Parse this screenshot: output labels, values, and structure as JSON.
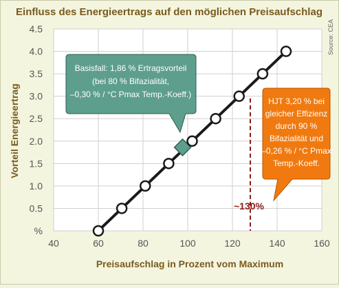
{
  "title": "Einfluss des Energieertrags auf den möglichen Preisaufschlag",
  "source": "Source: CEA",
  "colors": {
    "background": "#f3f5df",
    "plot_area": "#ffffff",
    "line": "#1a1a1a",
    "teal_callout": "#5e9e8c",
    "orange_callout": "#f07a10",
    "dashed_line": "#8b1a1a",
    "title": "#7a5a1e"
  },
  "chart_data": {
    "type": "line",
    "title": "Einfluss des Energieertrags auf den möglichen Preisaufschlag",
    "xlabel": "Preisaufschlag in Prozent vom Maximum",
    "ylabel": "Vorteil Energieertrag",
    "xlim": [
      40,
      160
    ],
    "ylim": [
      0,
      4.5
    ],
    "x_ticks": [
      "40",
      "60",
      "80",
      "100",
      "120",
      "140",
      "160"
    ],
    "y_ticks": [
      "%",
      "0.5",
      "1.0",
      "1.5",
      "2.0",
      "2.5",
      "3.0",
      "3.5",
      "4.0",
      "4.5"
    ],
    "grid": true,
    "series": [
      {
        "x": [
          60,
          70.5,
          81,
          91.5,
          102,
          112.5,
          123,
          133.5,
          144
        ],
        "y": [
          0,
          0.5,
          1.0,
          1.5,
          2.0,
          2.5,
          3.0,
          3.5,
          4.0
        ]
      }
    ],
    "highlight_point": {
      "x": 97.7,
      "y": 1.86
    },
    "reference_line": {
      "x": 128,
      "label": "~130%"
    },
    "callouts": [
      {
        "lines": [
          "Basisfall: 1,86 % Ertragsvorteil",
          "(bei 80 % Bifazialität,",
          "–0,30 % / °C Pmax Temp.-Koeff.)"
        ]
      },
      {
        "lines": [
          "HJT 3,20 % bei",
          "gleicher Effizienz",
          "durch 90 %",
          "Bifazialität und",
          "–0,26 % / °C Pmax",
          "Temp.-Koeff."
        ]
      }
    ]
  }
}
